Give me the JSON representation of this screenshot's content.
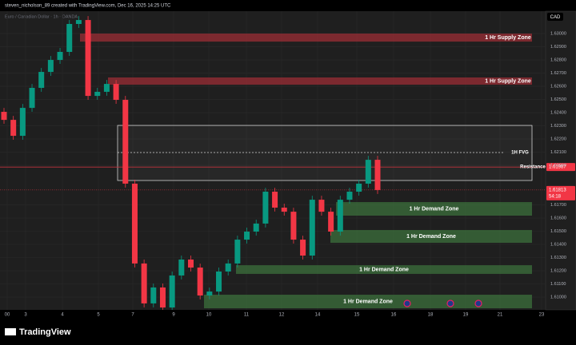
{
  "chart_data": {
    "type": "candlestick",
    "title": "steven_nicholson_89 created with TradingView.com, Dec 16, 2025 14:25 UTC",
    "subtitle": "Euro / Canadian Dollar · 1h · OANDA",
    "currency": "CAD",
    "branding": "TradingView",
    "up_color": "#089981",
    "down_color": "#f23645",
    "ylim": [
      1.60903,
      1.6317
    ],
    "yticks": [
      {
        "value": 1.61,
        "label": "1.61000"
      },
      {
        "value": 1.611,
        "label": "1.61100"
      },
      {
        "value": 1.612,
        "label": "1.61200"
      },
      {
        "value": 1.613,
        "label": "1.61300"
      },
      {
        "value": 1.614,
        "label": "1.61400"
      },
      {
        "value": 1.615,
        "label": "1.61500"
      },
      {
        "value": 1.616,
        "label": "1.61600"
      },
      {
        "value": 1.617,
        "label": "1.61700"
      },
      {
        "value": 1.62,
        "label": "1.62000"
      },
      {
        "value": 1.621,
        "label": "1.62100"
      },
      {
        "value": 1.622,
        "label": "1.62200"
      },
      {
        "value": 1.623,
        "label": "1.62300"
      },
      {
        "value": 1.624,
        "label": "1.62400"
      },
      {
        "value": 1.625,
        "label": "1.62500"
      },
      {
        "value": 1.626,
        "label": "1.62600"
      },
      {
        "value": 1.627,
        "label": "1.62700"
      },
      {
        "value": 1.628,
        "label": "1.62800"
      },
      {
        "value": 1.629,
        "label": "1.62900"
      },
      {
        "value": 1.63,
        "label": "1.63000"
      }
    ],
    "x_labels": [
      "00",
      "3",
      "4",
      "5",
      "7",
      "9",
      "10",
      "11",
      "12",
      "14",
      "15",
      "16",
      "18",
      "19",
      "21",
      "23"
    ],
    "open": [
      1.62406,
      1.62345,
      1.62224,
      1.62436,
      1.62588,
      1.62709,
      1.628,
      1.62861,
      1.63073,
      1.63103,
      1.62527,
      1.62558,
      1.62618,
      1.62497,
      1.61861,
      1.61255,
      1.60952,
      1.61073,
      1.60921,
      1.61164,
      1.61285,
      1.61224,
      1.61012,
      1.61042,
      1.61194,
      1.61255,
      1.61436,
      1.61497,
      1.61558,
      1.618,
      1.61679,
      1.61648,
      1.61436,
      1.61315,
      1.61739,
      1.61648,
      1.61497,
      1.61739,
      1.618,
      1.61861,
      1.62042
    ],
    "high": [
      1.62436,
      1.62375,
      1.62466,
      1.62618,
      1.62739,
      1.6283,
      1.62891,
      1.63103,
      1.63133,
      1.63133,
      1.62588,
      1.62648,
      1.62648,
      1.62527,
      1.61891,
      1.61285,
      1.61103,
      1.61103,
      1.61194,
      1.61315,
      1.61315,
      1.61254,
      1.61072,
      1.61224,
      1.61285,
      1.61466,
      1.61527,
      1.61588,
      1.6183,
      1.6183,
      1.61709,
      1.61678,
      1.61466,
      1.61769,
      1.61769,
      1.61678,
      1.61769,
      1.6183,
      1.61891,
      1.62072,
      1.62072
    ],
    "low": [
      1.62315,
      1.62194,
      1.62194,
      1.62406,
      1.62558,
      1.62679,
      1.6277,
      1.62831,
      1.63043,
      1.62497,
      1.62497,
      1.62528,
      1.62467,
      1.61831,
      1.61225,
      1.60922,
      1.60922,
      1.60891,
      1.60891,
      1.61134,
      1.61194,
      1.60982,
      1.60982,
      1.61012,
      1.61164,
      1.61225,
      1.61406,
      1.61467,
      1.61528,
      1.61649,
      1.61618,
      1.61406,
      1.61285,
      1.61285,
      1.61618,
      1.61467,
      1.61467,
      1.61709,
      1.6177,
      1.61831,
      1.61783
    ],
    "close": [
      1.62345,
      1.62224,
      1.62436,
      1.62588,
      1.62709,
      1.628,
      1.62861,
      1.63073,
      1.63103,
      1.62527,
      1.62558,
      1.62618,
      1.62497,
      1.61861,
      1.61255,
      1.60952,
      1.61073,
      1.60921,
      1.61164,
      1.61285,
      1.61224,
      1.61012,
      1.61042,
      1.61194,
      1.61255,
      1.61436,
      1.61497,
      1.61558,
      1.618,
      1.61679,
      1.61648,
      1.61436,
      1.61315,
      1.61739,
      1.61648,
      1.61497,
      1.61739,
      1.618,
      1.61861,
      1.62042,
      1.61813
    ],
    "zones": [
      {
        "name": "1 Hr Supply Zone",
        "kind": "supply",
        "top": 1.63,
        "bottom": 1.62939
      },
      {
        "name": "1 Hr Supply Zone",
        "kind": "supply",
        "top": 1.62667,
        "bottom": 1.62612
      },
      {
        "name": "1 Hr Demand Zone",
        "kind": "demand",
        "top": 1.61721,
        "bottom": 1.61618
      },
      {
        "name": "1 Hr Demand Zone",
        "kind": "demand",
        "top": 1.61509,
        "bottom": 1.61412
      },
      {
        "name": "1 Hr Demand Zone",
        "kind": "demand",
        "top": 1.61242,
        "bottom": 1.61176
      },
      {
        "name": "1 Hr Demand Zone",
        "kind": "demand",
        "top": 1.61018,
        "bottom": 1.60915
      }
    ],
    "fvg": {
      "name": "1H FVG",
      "top": 1.62303,
      "bottom": 1.61885,
      "level": 1.62097
    },
    "resistance": {
      "name": "Resistance",
      "value": 1.61987,
      "label": "1.61987"
    },
    "last_price": {
      "value": 1.61813,
      "label": "1.61813",
      "countdown": "54:18"
    }
  }
}
